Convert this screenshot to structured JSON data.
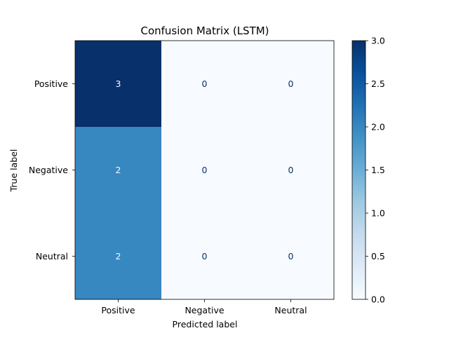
{
  "chart_data": {
    "type": "heatmap",
    "title": "Confusion Matrix (LSTM)",
    "xlabel": "Predicted label",
    "ylabel": "True label",
    "x_categories": [
      "Positive",
      "Negative",
      "Neutral"
    ],
    "y_categories": [
      "Positive",
      "Negative",
      "Neutral"
    ],
    "values": [
      [
        3,
        0,
        0
      ],
      [
        2,
        0,
        0
      ],
      [
        2,
        0,
        0
      ]
    ],
    "colormap": "Blues",
    "colorbar": {
      "range": [
        0,
        3
      ],
      "ticks": [
        0.0,
        0.5,
        1.0,
        1.5,
        2.0,
        2.5,
        3.0
      ],
      "tick_labels": [
        "0.0",
        "0.5",
        "1.0",
        "1.5",
        "2.0",
        "2.5",
        "3.0"
      ]
    },
    "grid": false
  }
}
